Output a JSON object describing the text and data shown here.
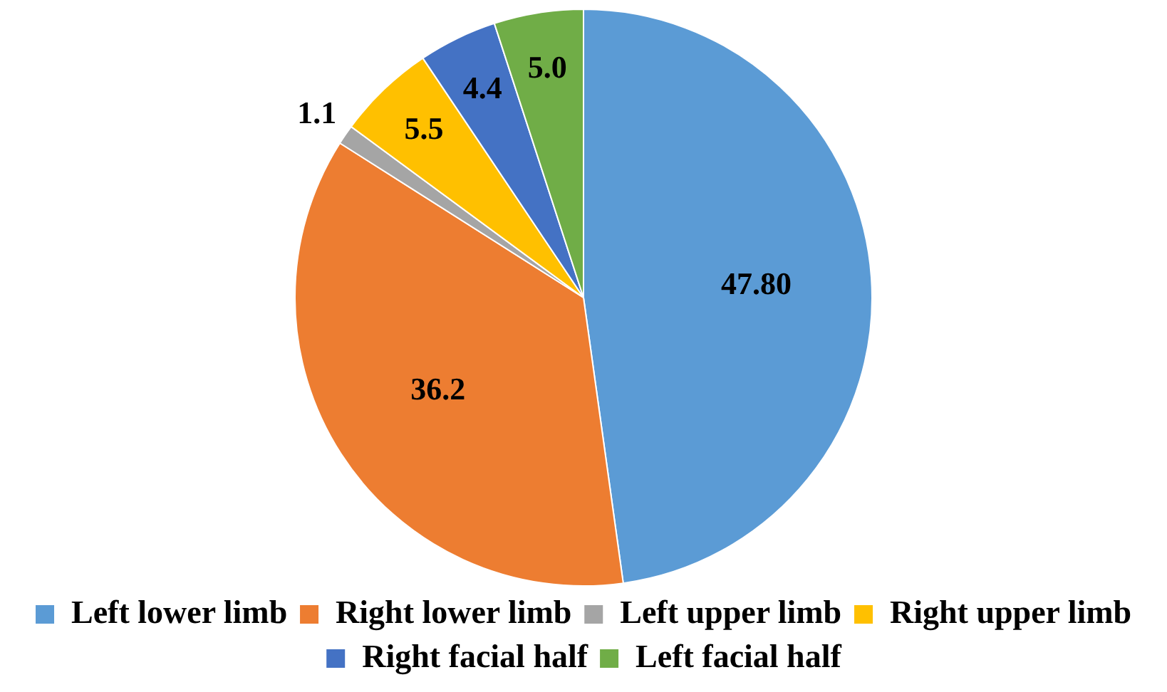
{
  "chart_data": {
    "type": "pie",
    "categories": [
      "Left lower limb",
      "Right lower limb",
      "Left upper limb",
      "Right upper limb",
      "Right facial half",
      "Left facial half"
    ],
    "values": [
      47.8,
      36.2,
      1.1,
      5.5,
      4.4,
      5.0
    ],
    "value_labels": [
      "47.80",
      "36.2",
      "1.1",
      "5.5",
      "4.4",
      "5.0"
    ],
    "colors": [
      "#5b9bd5",
      "#ed7d31",
      "#a5a5a5",
      "#ffc000",
      "#4472c4",
      "#70ad47"
    ],
    "legend": "bottom"
  }
}
